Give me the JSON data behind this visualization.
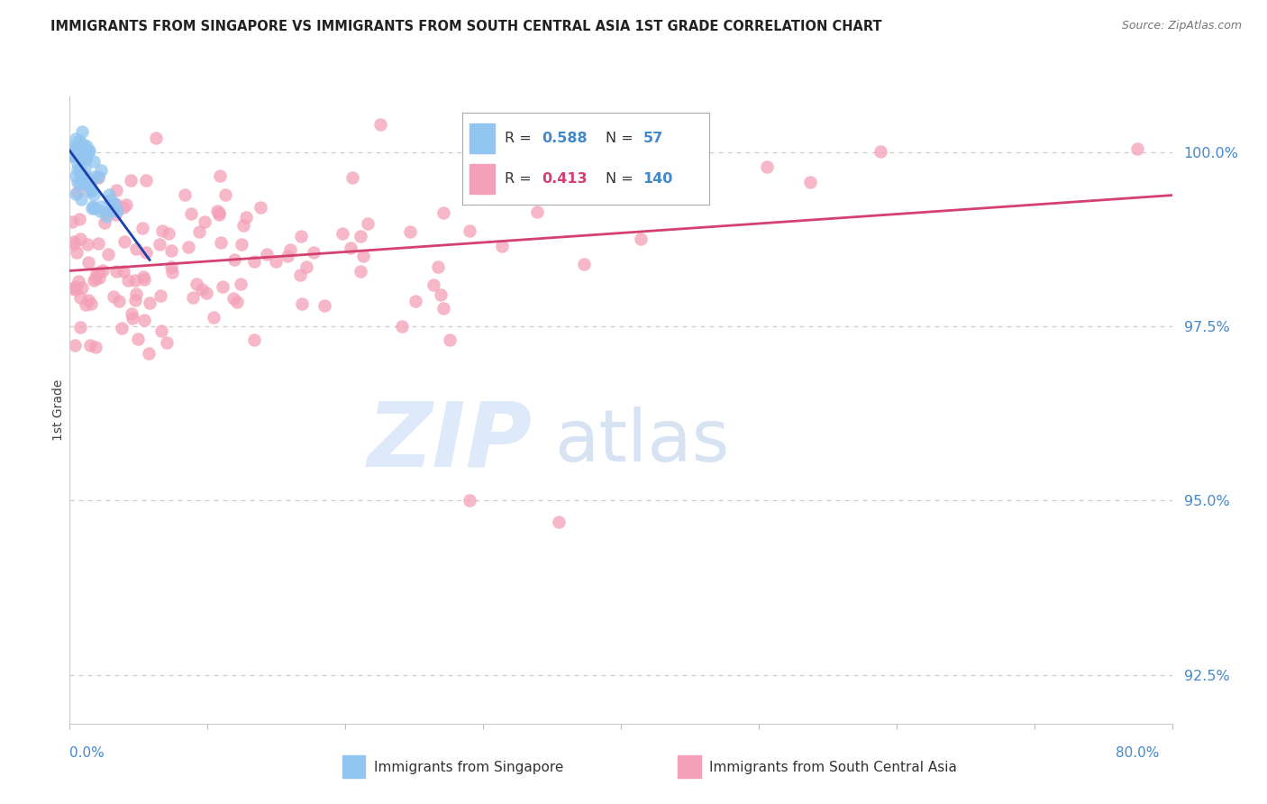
{
  "title": "IMMIGRANTS FROM SINGAPORE VS IMMIGRANTS FROM SOUTH CENTRAL ASIA 1ST GRADE CORRELATION CHART",
  "source": "Source: ZipAtlas.com",
  "ylabel": "1st Grade",
  "xmin": 0.0,
  "xmax": 80.0,
  "ymin": 91.8,
  "ymax": 100.8,
  "yticks": [
    92.5,
    95.0,
    97.5,
    100.0
  ],
  "ytick_labels": [
    "92.5%",
    "95.0%",
    "97.5%",
    "100.0%"
  ],
  "legend_r_singapore": "0.588",
  "legend_n_singapore": "57",
  "legend_r_south_central": "0.413",
  "legend_n_south_central": "140",
  "color_singapore": "#92C5F0",
  "color_south_central": "#F4A0B8",
  "color_singapore_line": "#1A3FAA",
  "color_south_central_line": "#D44070",
  "background_color": "#FFFFFF",
  "grid_color": "#CCCCCC",
  "axis_label_color": "#4488CC",
  "title_color": "#222222",
  "source_color": "#777777",
  "legend_text_color": "#333333",
  "watermark_color_zip": "#C8DCF8",
  "watermark_color_atlas": "#B0C8E8"
}
